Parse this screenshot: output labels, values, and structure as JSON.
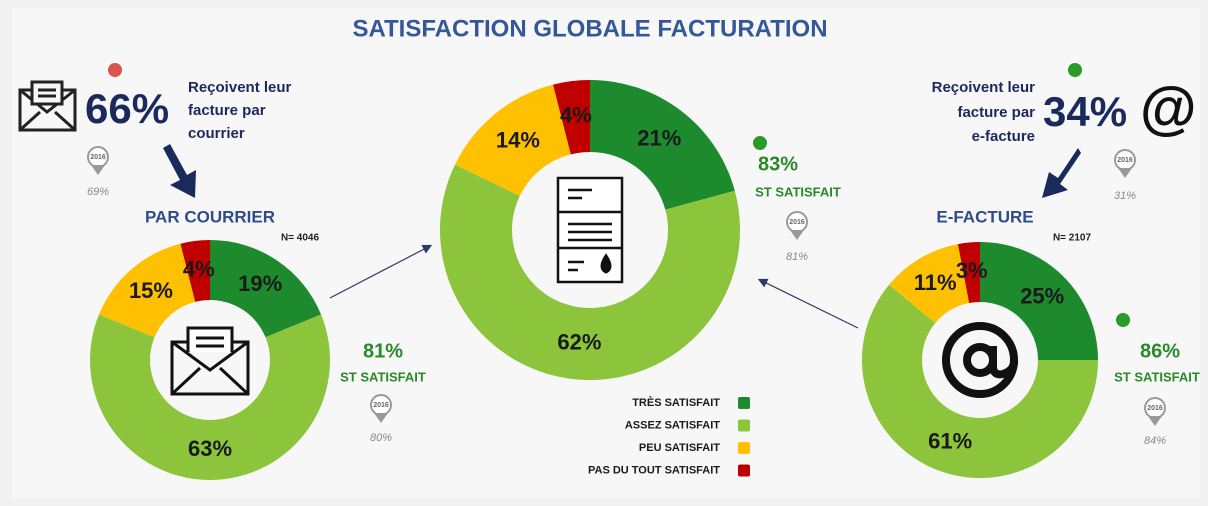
{
  "title": "SATISFACTION GLOBALE FACTURATION",
  "courrier": {
    "share": "66%",
    "text": [
      "Reçoivent leur",
      "facture par",
      "courrier"
    ],
    "previous_year": "2016",
    "previous_share": "69%"
  },
  "efacture": {
    "share": "34%",
    "symbol": "@",
    "text": [
      "Reçoivent leur",
      "facture par",
      "e-facture"
    ],
    "previous_year": "2016",
    "previous_share": "31%"
  },
  "chart_data": [
    {
      "type": "donut",
      "title": "PAR COURRIER",
      "sample": "N= 4046",
      "categories": [
        "TRÈS SATISFAIT",
        "ASSEZ SATISFAIT",
        "PEU SATISFAIT",
        "PAS DU TOUT SATISFAIT"
      ],
      "colors": [
        "#1e8a2e",
        "#8cc43c",
        "#ffc000",
        "#c00000"
      ],
      "values": [
        19,
        63,
        15,
        4
      ],
      "value_labels": [
        "19%",
        "63%",
        "15%",
        "4%"
      ],
      "summary": "81%",
      "summary_text": "ST SATISFAIT",
      "previous_year": "2016",
      "previous_summary": "80%"
    },
    {
      "type": "donut",
      "categories": [
        "TRÈS SATISFAIT",
        "ASSEZ SATISFAIT",
        "PEU SATISFAIT",
        "PAS DU TOUT SATISFAIT"
      ],
      "colors": [
        "#1e8a2e",
        "#8cc43c",
        "#ffc000",
        "#c00000"
      ],
      "values": [
        21,
        62,
        14,
        4
      ],
      "value_labels": [
        "21%",
        "62%",
        "14%",
        "4%"
      ],
      "summary": "83%",
      "summary_text": "ST SATISFAIT",
      "previous_year": "2016",
      "previous_summary": "81%"
    },
    {
      "type": "donut",
      "title": "E-FACTURE",
      "sample": "N= 2107",
      "categories": [
        "TRÈS SATISFAIT",
        "ASSEZ SATISFAIT",
        "PEU SATISFAIT",
        "PAS DU TOUT SATISFAIT"
      ],
      "colors": [
        "#1e8a2e",
        "#8cc43c",
        "#ffc000",
        "#c00000"
      ],
      "values": [
        25,
        61,
        11,
        3
      ],
      "value_labels": [
        "25%",
        "61%",
        "11%",
        "3%"
      ],
      "summary": "86%",
      "summary_text": "ST SATISFAIT",
      "previous_year": "2016",
      "previous_summary": "84%"
    }
  ]
}
